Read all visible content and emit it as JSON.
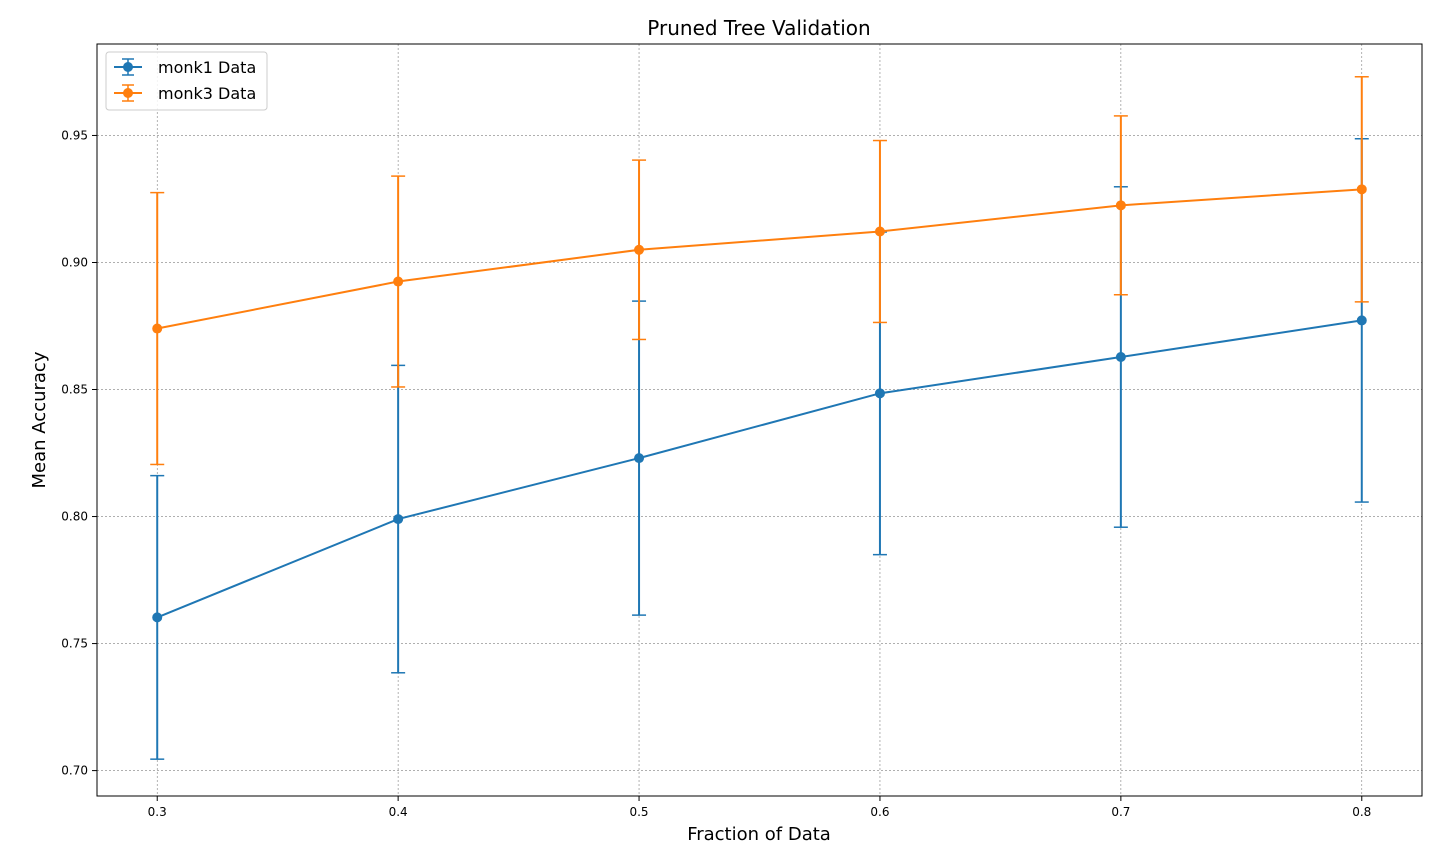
{
  "chart_data": {
    "type": "line",
    "title": "Pruned Tree Validation",
    "xlabel": "Fraction of Data",
    "ylabel": "Mean Accuracy",
    "x": [
      0.3,
      0.4,
      0.5,
      0.6,
      0.7,
      0.8
    ],
    "xlim": [
      0.275,
      0.825
    ],
    "ylim": [
      0.69,
      0.986
    ],
    "xticks": [
      "0.3",
      "0.4",
      "0.5",
      "0.6",
      "0.7",
      "0.8"
    ],
    "yticks": [
      "0.70",
      "0.75",
      "0.80",
      "0.85",
      "0.90",
      "0.95"
    ],
    "grid": true,
    "legend_position": "top-left",
    "series": [
      {
        "name": "monk1 Data",
        "color": "#1f77b4",
        "values": [
          0.7603,
          0.799,
          0.823,
          0.8485,
          0.8628,
          0.8772
        ],
        "error": [
          0.0558,
          0.0605,
          0.0618,
          0.0635,
          0.067,
          0.0715
        ]
      },
      {
        "name": "monk3 Data",
        "color": "#ff7f0e",
        "values": [
          0.874,
          0.8925,
          0.905,
          0.9122,
          0.9225,
          0.9288
        ],
        "error": [
          0.0535,
          0.0415,
          0.0353,
          0.0358,
          0.0352,
          0.0443
        ]
      }
    ]
  }
}
